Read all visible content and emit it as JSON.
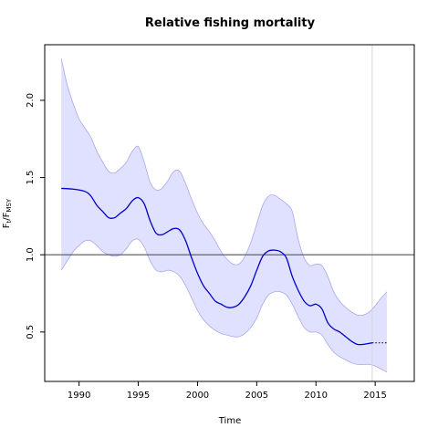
{
  "chart_data": {
    "type": "line",
    "title": "Relative fishing mortality",
    "xlabel": "Time",
    "ylabel": {
      "base": "F",
      "sub1": "t",
      "slash": "/F",
      "sub2": "MSY"
    },
    "xlim": [
      1987.1,
      2018.3
    ],
    "ylim": [
      0.18,
      2.36
    ],
    "x_ticks": [
      1990,
      1995,
      2000,
      2005,
      2010,
      2015
    ],
    "y_ticks": [
      0.5,
      1.0,
      1.5,
      2.0
    ],
    "x_tick_labels": [
      "1990",
      "1995",
      "2000",
      "2005",
      "2010",
      "2015"
    ],
    "y_tick_labels": [
      "0.5",
      "1.0",
      "1.5",
      "2.0"
    ],
    "reference_line_y": 1.0,
    "vertical_marker_x": 2014.75,
    "colors": {
      "line": "#0000cc",
      "band_fill": "#e0e0ff",
      "band_stroke": "#a8a8f0",
      "reference": "#555555",
      "marker": "#d6d6d6"
    },
    "series": [
      {
        "role": "estimate",
        "x": [
          1988.5,
          1989.5,
          1990.5,
          1991.0,
          1991.5,
          1992.0,
          1992.5,
          1993.0,
          1993.5,
          1994.0,
          1994.5,
          1995.0,
          1995.5,
          1996.0,
          1996.5,
          1997.0,
          1997.5,
          1998.0,
          1998.5,
          1999.0,
          1999.5,
          2000.0,
          2000.5,
          2001.0,
          2001.5,
          2002.0,
          2002.5,
          2003.0,
          2003.5,
          2004.0,
          2004.5,
          2005.0,
          2005.5,
          2006.0,
          2006.5,
          2007.0,
          2007.5,
          2008.0,
          2008.5,
          2009.0,
          2009.5,
          2010.0,
          2010.5,
          2011.0,
          2011.5,
          2012.0,
          2012.5,
          2013.0,
          2013.5,
          2014.0,
          2014.75
        ],
        "values": [
          1.43,
          1.425,
          1.41,
          1.38,
          1.32,
          1.28,
          1.24,
          1.24,
          1.27,
          1.3,
          1.35,
          1.37,
          1.33,
          1.22,
          1.14,
          1.13,
          1.15,
          1.17,
          1.16,
          1.09,
          0.98,
          0.88,
          0.8,
          0.75,
          0.7,
          0.68,
          0.66,
          0.66,
          0.68,
          0.73,
          0.8,
          0.9,
          0.99,
          1.025,
          1.03,
          1.02,
          0.98,
          0.86,
          0.77,
          0.7,
          0.67,
          0.68,
          0.65,
          0.56,
          0.52,
          0.5,
          0.47,
          0.44,
          0.42,
          0.42,
          0.43
        ]
      },
      {
        "role": "forecast",
        "x": [
          2014.75,
          2015.25,
          2016.0
        ],
        "values": [
          0.43,
          0.43,
          0.43
        ]
      },
      {
        "role": "upper_bound",
        "x": [
          1988.5,
          1989.0,
          1989.5,
          1990.0,
          1990.5,
          1991.0,
          1991.5,
          1992.0,
          1992.5,
          1993.0,
          1993.5,
          1994.0,
          1994.5,
          1995.0,
          1995.5,
          1996.0,
          1996.5,
          1997.0,
          1997.5,
          1998.0,
          1998.5,
          1999.0,
          1999.5,
          2000.0,
          2000.5,
          2001.0,
          2001.5,
          2002.0,
          2002.5,
          2003.0,
          2003.5,
          2004.0,
          2004.5,
          2005.0,
          2005.5,
          2006.0,
          2006.5,
          2007.0,
          2007.5,
          2008.0,
          2008.5,
          2009.0,
          2009.5,
          2010.0,
          2010.5,
          2011.0,
          2011.5,
          2012.0,
          2012.5,
          2013.0,
          2013.5,
          2014.0,
          2014.5,
          2015.0,
          2015.5,
          2016.0
        ],
        "values": [
          2.27,
          2.1,
          1.98,
          1.88,
          1.82,
          1.76,
          1.67,
          1.6,
          1.54,
          1.53,
          1.56,
          1.6,
          1.67,
          1.7,
          1.6,
          1.47,
          1.42,
          1.43,
          1.48,
          1.54,
          1.54,
          1.46,
          1.36,
          1.27,
          1.2,
          1.15,
          1.09,
          1.02,
          0.97,
          0.94,
          0.94,
          0.99,
          1.08,
          1.2,
          1.32,
          1.38,
          1.385,
          1.36,
          1.33,
          1.28,
          1.1,
          0.98,
          0.93,
          0.94,
          0.93,
          0.86,
          0.76,
          0.7,
          0.66,
          0.63,
          0.61,
          0.61,
          0.63,
          0.67,
          0.72,
          0.76
        ]
      },
      {
        "role": "lower_bound",
        "x": [
          1988.5,
          1989.0,
          1989.5,
          1990.0,
          1990.5,
          1991.0,
          1991.5,
          1992.0,
          1992.5,
          1993.0,
          1993.5,
          1994.0,
          1994.5,
          1995.0,
          1995.5,
          1996.0,
          1996.5,
          1997.0,
          1997.5,
          1998.0,
          1998.5,
          1999.0,
          1999.5,
          2000.0,
          2000.5,
          2001.0,
          2001.5,
          2002.0,
          2002.5,
          2003.0,
          2003.5,
          2004.0,
          2004.5,
          2005.0,
          2005.5,
          2006.0,
          2006.5,
          2007.0,
          2007.5,
          2008.0,
          2008.5,
          2009.0,
          2009.5,
          2010.0,
          2010.5,
          2011.0,
          2011.5,
          2012.0,
          2012.5,
          2013.0,
          2013.5,
          2014.0,
          2014.5,
          2015.0,
          2015.5,
          2016.0
        ],
        "values": [
          0.9,
          0.96,
          1.02,
          1.06,
          1.09,
          1.09,
          1.06,
          1.02,
          1.0,
          0.99,
          1.0,
          1.04,
          1.09,
          1.1,
          1.05,
          0.96,
          0.9,
          0.89,
          0.9,
          0.89,
          0.86,
          0.8,
          0.72,
          0.64,
          0.58,
          0.54,
          0.51,
          0.49,
          0.48,
          0.47,
          0.47,
          0.49,
          0.53,
          0.59,
          0.68,
          0.74,
          0.76,
          0.76,
          0.74,
          0.68,
          0.6,
          0.53,
          0.5,
          0.5,
          0.48,
          0.42,
          0.37,
          0.34,
          0.32,
          0.3,
          0.29,
          0.29,
          0.29,
          0.28,
          0.26,
          0.24
        ]
      }
    ]
  }
}
